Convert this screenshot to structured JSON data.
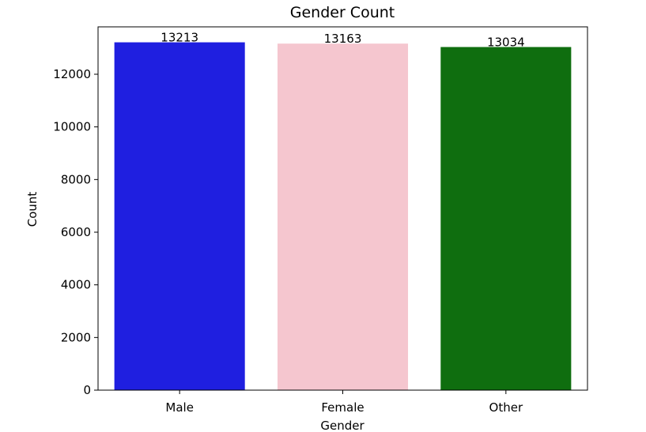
{
  "chart_data": {
    "type": "bar",
    "title": "Gender Count",
    "xlabel": "Gender",
    "ylabel": "Count",
    "categories": [
      "Male",
      "Female",
      "Other"
    ],
    "values": [
      13213,
      13163,
      13034
    ],
    "data_labels": [
      "13213",
      "13163",
      "13034"
    ],
    "colors": [
      "#1f1fe0",
      "#f5c6cf",
      "#0f6e0f"
    ],
    "ylim": [
      0,
      13800
    ],
    "yticks": [
      0,
      2000,
      4000,
      6000,
      8000,
      10000,
      12000
    ],
    "ytick_labels": [
      "0",
      "2000",
      "4000",
      "6000",
      "8000",
      "10000",
      "12000"
    ],
    "grid": false,
    "legend": "none"
  }
}
